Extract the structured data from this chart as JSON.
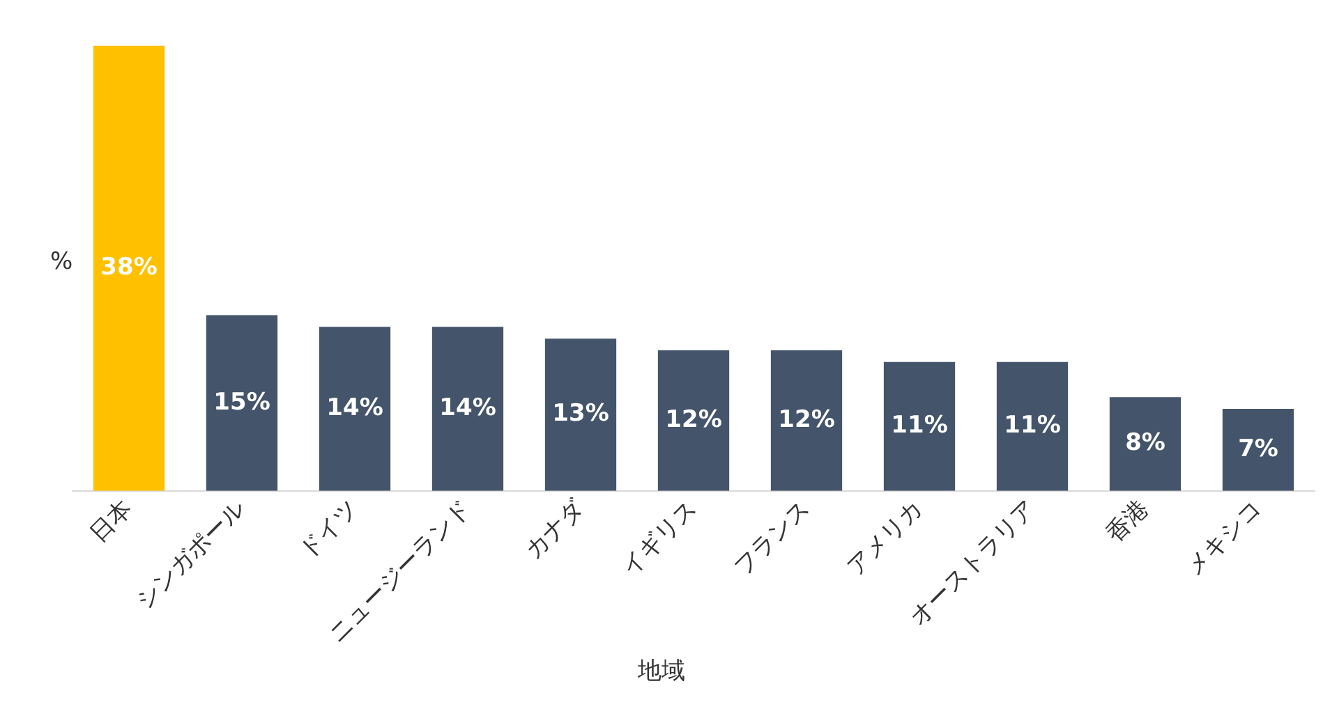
{
  "chart_data": {
    "type": "bar",
    "ylabel": "%",
    "xlabel": "地域",
    "categories": [
      "日本",
      "シンガポール",
      "ドイツ",
      "ニュージーランド",
      "カナダ",
      "イギリス",
      "フランス",
      "アメリカ",
      "オーストラリア",
      "香港",
      "メキシコ"
    ],
    "values": [
      38,
      15,
      14,
      14,
      13,
      12,
      12,
      11,
      11,
      8,
      7
    ],
    "colors": [
      "#ffc000",
      "#44546a",
      "#44546a",
      "#44546a",
      "#44546a",
      "#44546a",
      "#44546a",
      "#44546a",
      "#44546a",
      "#44546a",
      "#44546a"
    ],
    "value_labels": [
      "38%",
      "15%",
      "14%",
      "14%",
      "13%",
      "12%",
      "12%",
      "11%",
      "11%",
      "8%",
      "7%"
    ],
    "grid": false,
    "legend": false
  }
}
